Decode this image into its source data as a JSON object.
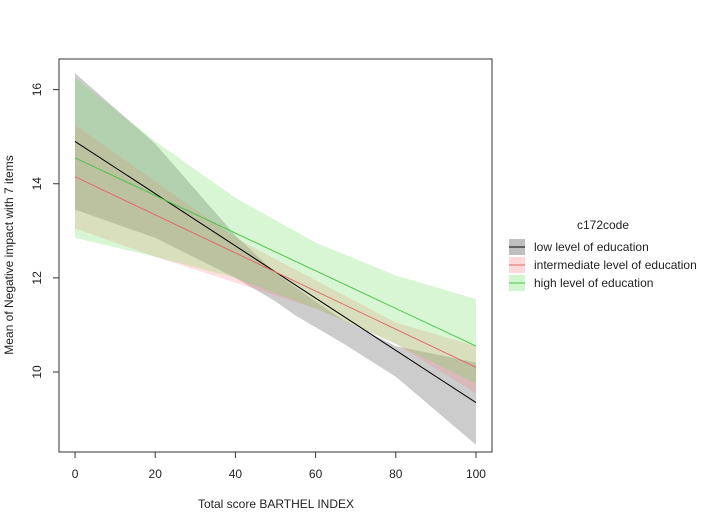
{
  "chart_data": {
    "type": "line",
    "title": "",
    "xlabel": "Total score BARTHEL INDEX",
    "ylabel": "Mean of Negative impact with 7 items",
    "xlim": [
      -4,
      104
    ],
    "ylim": [
      8.3,
      16.65
    ],
    "x_ticks": [
      0,
      20,
      40,
      60,
      80,
      100
    ],
    "y_ticks": [
      10,
      12,
      14,
      16
    ],
    "grid": false,
    "legend": {
      "title": "c172code",
      "placement": "right"
    },
    "series": [
      {
        "name": "low level of education",
        "line_color": "#000000",
        "band_color": "#000000",
        "band_opacity": 0.2,
        "x": [
          0,
          100
        ],
        "y": [
          14.9,
          9.35
        ],
        "band_x": [
          0,
          20,
          40,
          50,
          55,
          60,
          67,
          80,
          100
        ],
        "band_lower": [
          13.45,
          12.85,
          12.0,
          11.5,
          11.2,
          10.95,
          10.6,
          9.9,
          8.45
        ],
        "band_upper": [
          16.35,
          14.85,
          12.9,
          12.1,
          11.8,
          11.5,
          11.1,
          10.55,
          10.2
        ]
      },
      {
        "name": "intermediate level of education",
        "line_color": "#e06b6b",
        "band_color": "#ff8080",
        "band_opacity": 0.25,
        "x": [
          0,
          100
        ],
        "y": [
          14.15,
          10.1
        ],
        "band_x": [
          0,
          20,
          40,
          60,
          80,
          100
        ],
        "band_lower": [
          13.05,
          12.45,
          11.9,
          11.35,
          10.6,
          9.55
        ],
        "band_upper": [
          15.25,
          14.05,
          12.85,
          11.95,
          11.05,
          10.55
        ]
      },
      {
        "name": "high level of education",
        "line_color": "#4cc44c",
        "band_color": "#66dd55",
        "band_opacity": 0.25,
        "x": [
          0,
          100
        ],
        "y": [
          14.55,
          10.55
        ],
        "band_x": [
          0,
          20,
          40,
          60,
          80,
          100
        ],
        "band_lower": [
          12.85,
          12.45,
          12.0,
          11.35,
          10.6,
          9.75
        ],
        "band_upper": [
          16.25,
          14.9,
          13.7,
          12.75,
          12.05,
          11.55
        ]
      }
    ]
  }
}
